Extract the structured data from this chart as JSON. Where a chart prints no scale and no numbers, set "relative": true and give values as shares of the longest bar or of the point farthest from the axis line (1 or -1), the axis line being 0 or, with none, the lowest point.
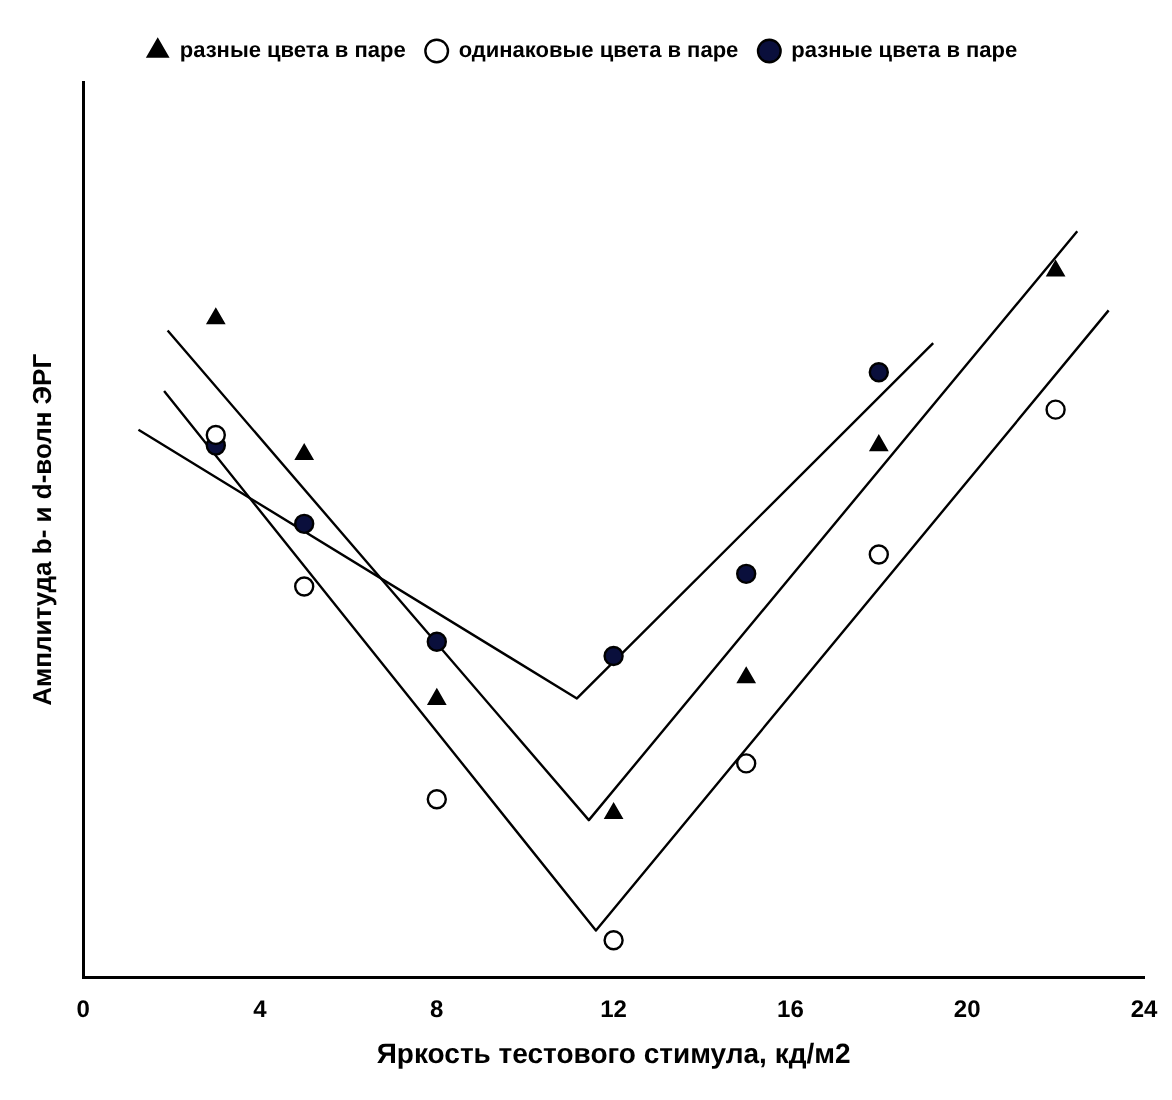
{
  "chart_data": {
    "type": "scatter",
    "relative": true,
    "xlabel": "Яркость тестового стимула, кд/м2",
    "ylabel": "Амплитуда b- и d-волн ЭРГ",
    "xlim": [
      0,
      24
    ],
    "xticks": [
      0,
      4,
      8,
      12,
      16,
      20,
      24
    ],
    "grid": false,
    "legend": "top",
    "series": [
      {
        "name": "разные цвета в паре",
        "color": "#000000",
        "marker": "triangle",
        "x": [
          3,
          5,
          8,
          12,
          15,
          18,
          22
        ],
        "values": [
          0.883,
          0.701,
          0.373,
          0.22,
          0.402,
          0.713,
          0.947
        ]
      },
      {
        "name": "одинаковые цвета в паре",
        "color": "#ffffff",
        "marker": "circle",
        "x": [
          3,
          5,
          8,
          12,
          15,
          18,
          22
        ],
        "values": [
          0.727,
          0.524,
          0.239,
          0.05,
          0.287,
          0.567,
          0.761
        ]
      },
      {
        "name": "разные цвета в паре",
        "color": "#0a0f3c",
        "marker": "circle",
        "x": [
          3,
          5,
          8,
          12,
          15,
          18
        ],
        "values": [
          0.713,
          0.608,
          0.45,
          0.431,
          0.541,
          0.811
        ]
      },
      {
        "type": "line",
        "color": "#000000",
        "marker": "none",
        "x": [
          1.25,
          11.17,
          19.23
        ],
        "values": [
          0.734,
          0.374,
          0.85
        ]
      },
      {
        "type": "line",
        "color": "#000000",
        "marker": "none",
        "x": [
          1.91,
          11.44,
          22.49
        ],
        "values": [
          0.867,
          0.211,
          1
        ]
      },
      {
        "type": "line",
        "color": "#000000",
        "marker": "none",
        "x": [
          1.83,
          11.6,
          23.2
        ],
        "values": [
          0.786,
          0.063,
          0.894
        ]
      }
    ]
  }
}
